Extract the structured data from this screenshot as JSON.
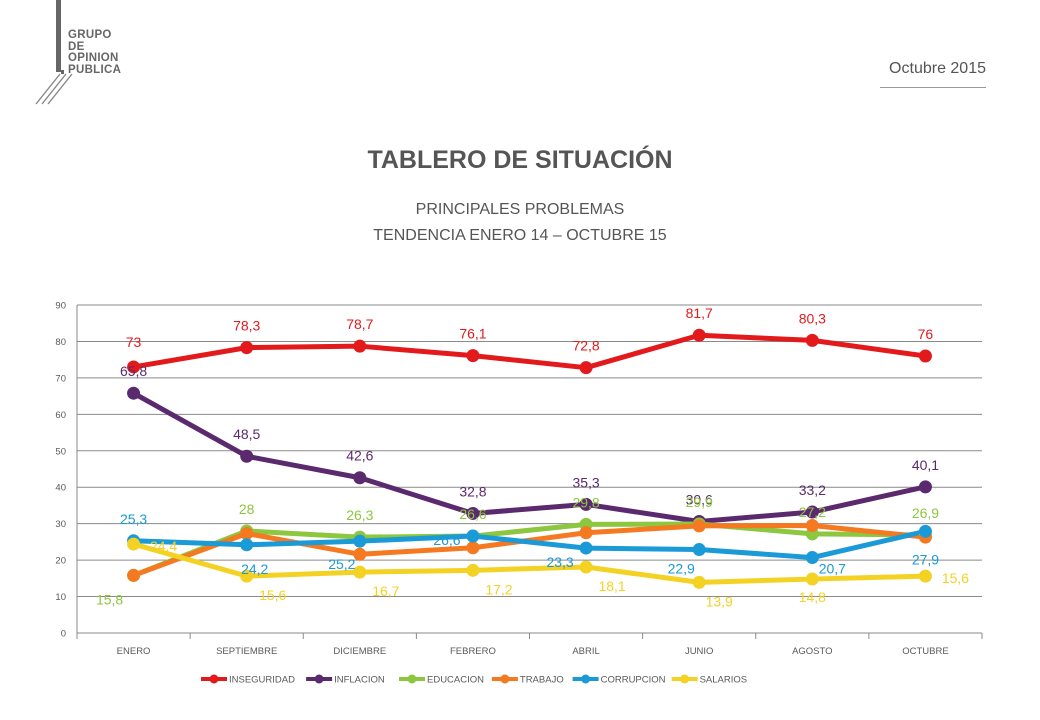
{
  "logo": {
    "lines": [
      "GRUPO",
      "DE",
      "OPINION",
      "PUBLICA"
    ]
  },
  "header": {
    "date": "Octubre 2015",
    "title": "TABLERO DE SITUACIÓN",
    "subtitle_1": "PRINCIPALES PROBLEMAS",
    "subtitle_2": "TENDENCIA ENERO 14 – OCTUBRE 15"
  },
  "chart_data": {
    "type": "line",
    "title": "",
    "xlabel": "",
    "ylabel": "",
    "ylim": [
      0,
      90
    ],
    "yticks": [
      0,
      10,
      20,
      30,
      40,
      50,
      60,
      70,
      80,
      90
    ],
    "grid": true,
    "legend_position": "bottom",
    "categories": [
      "ENERO",
      "SEPTIEMBRE",
      "DICIEMBRE",
      "FEBRERO",
      "ABRIL",
      "JUNIO",
      "AGOSTO",
      "OCTUBRE"
    ],
    "series": [
      {
        "name": "INSEGURIDAD",
        "color": "#e31a1c",
        "values": [
          73,
          78.3,
          78.7,
          76.1,
          72.8,
          81.7,
          80.3,
          76
        ],
        "labels": [
          "73",
          "78,3",
          "78,7",
          "76,1",
          "72,8",
          "81,7",
          "80,3",
          "76"
        ]
      },
      {
        "name": "INFLACION",
        "color": "#5b2a6e",
        "values": [
          65.8,
          48.5,
          42.6,
          32.8,
          35.3,
          30.6,
          33.2,
          40.1
        ],
        "labels": [
          "65,8",
          "48,5",
          "42,6",
          "32,8",
          "35,3",
          "30,6",
          "33,2",
          "40,1"
        ]
      },
      {
        "name": "EDUCACION",
        "color": "#8dc63f",
        "values": [
          15.8,
          28,
          26.3,
          26.6,
          29.8,
          29.9,
          27.2,
          26.9
        ],
        "labels": [
          "15,8",
          "28",
          "26,3",
          "26,6",
          "29,8",
          "29,9",
          "27,2",
          "26,9"
        ]
      },
      {
        "name": "TRABAJO",
        "color": "#f47920",
        "values": [
          15.8,
          27.3,
          21.6,
          23.4,
          27.5,
          29.4,
          29.5,
          26.3
        ],
        "labels": []
      },
      {
        "name": "CORRUPCION",
        "color": "#1a9ad6",
        "values": [
          25.3,
          24.2,
          25.2,
          26.6,
          23.3,
          22.9,
          20.7,
          27.9
        ],
        "labels": [
          "25,3",
          "24,2",
          "25,2",
          "26,6",
          "23,3",
          "22,9",
          "20,7",
          "27,9"
        ]
      },
      {
        "name": "SALARIOS",
        "color": "#f4d224",
        "values": [
          24.4,
          15.6,
          16.7,
          17.2,
          18.1,
          13.9,
          14.8,
          15.6
        ],
        "labels": [
          "24,4",
          "15,6",
          "16,7",
          "17,2",
          "18,1",
          "13,9",
          "14,8",
          "15,6"
        ]
      }
    ]
  }
}
